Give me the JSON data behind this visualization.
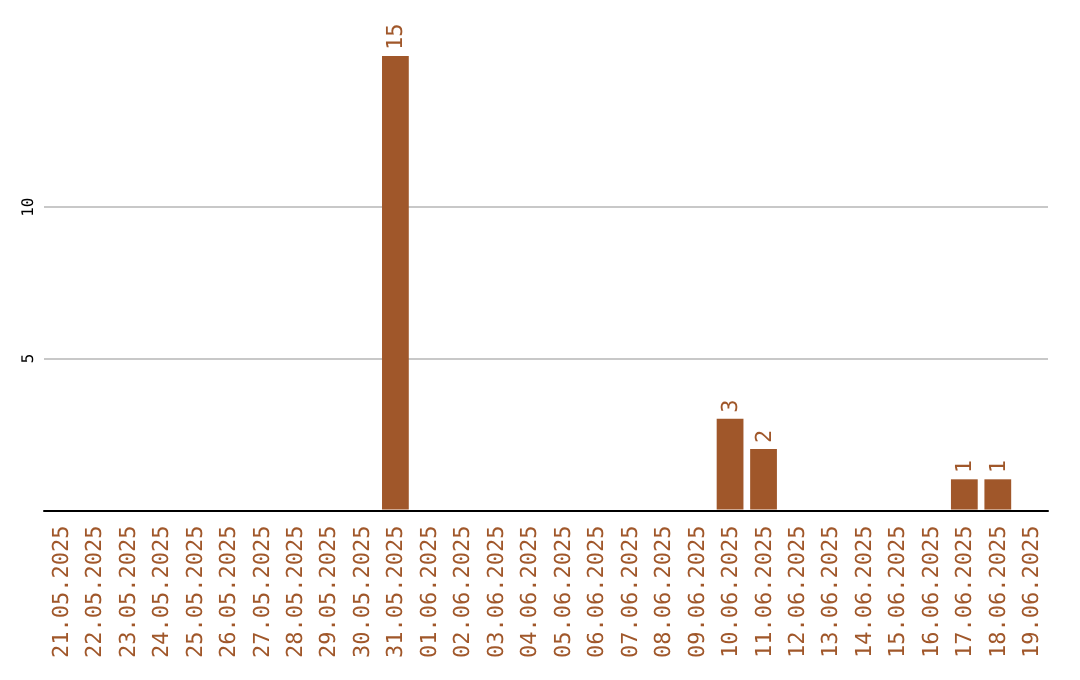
{
  "chart_data": {
    "type": "bar",
    "categories": [
      "21.05.2025",
      "22.05.2025",
      "23.05.2025",
      "24.05.2025",
      "25.05.2025",
      "26.05.2025",
      "27.05.2025",
      "28.05.2025",
      "29.05.2025",
      "30.05.2025",
      "31.05.2025",
      "01.06.2025",
      "02.06.2025",
      "03.06.2025",
      "04.06.2025",
      "05.06.2025",
      "06.06.2025",
      "07.06.2025",
      "08.06.2025",
      "09.06.2025",
      "10.06.2025",
      "11.06.2025",
      "12.06.2025",
      "13.06.2025",
      "14.06.2025",
      "15.06.2025",
      "16.06.2025",
      "17.06.2025",
      "18.06.2025",
      "19.06.2025"
    ],
    "values": [
      0,
      0,
      0,
      0,
      0,
      0,
      0,
      0,
      0,
      0,
      15,
      0,
      0,
      0,
      0,
      0,
      0,
      0,
      0,
      0,
      3,
      2,
      0,
      0,
      0,
      0,
      0,
      1,
      1,
      0
    ],
    "value_labels": [
      null,
      null,
      null,
      null,
      null,
      null,
      null,
      null,
      null,
      null,
      "15",
      null,
      null,
      null,
      null,
      null,
      null,
      null,
      null,
      null,
      "3",
      "2",
      null,
      null,
      null,
      null,
      null,
      "1",
      "1",
      null
    ],
    "color": "#a0572a",
    "ylim": [
      0,
      15
    ],
    "yticks": [
      5,
      10
    ],
    "grid": "y"
  }
}
